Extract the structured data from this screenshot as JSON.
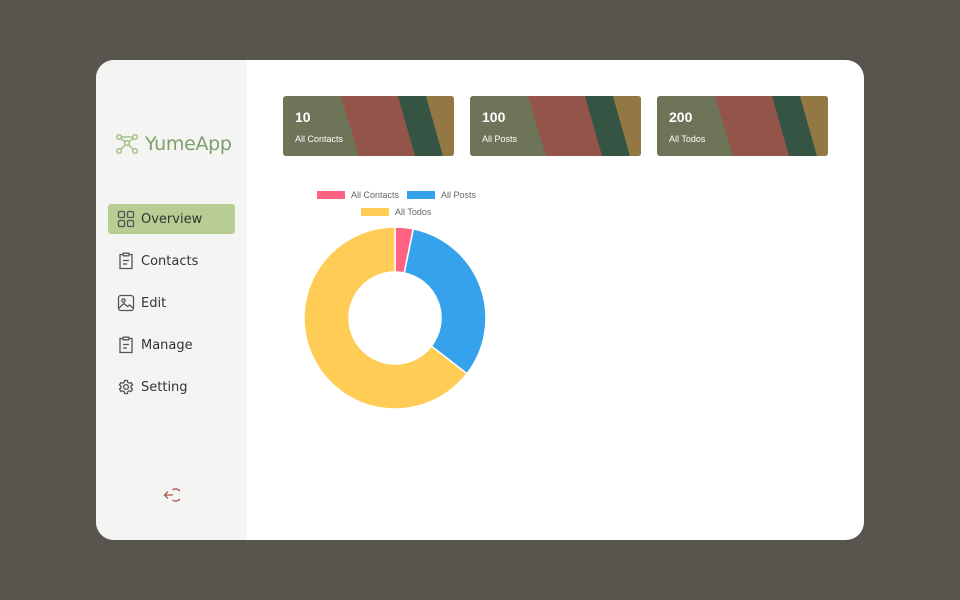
{
  "brand": {
    "name": "YumeApp",
    "icon": "nodes-logo-icon",
    "color": "#7da06a"
  },
  "sidebar": {
    "items": [
      {
        "label": "Overview",
        "icon": "grid-icon",
        "active": true
      },
      {
        "label": "Contacts",
        "icon": "clipboard-icon",
        "active": false
      },
      {
        "label": "Edit",
        "icon": "image-icon",
        "active": false
      },
      {
        "label": "Manage",
        "icon": "clipboard-icon",
        "active": false
      },
      {
        "label": "Setting",
        "icon": "gear-icon",
        "active": false
      }
    ],
    "logout_icon": "logout-icon",
    "active_color": "#b7cd93"
  },
  "cards": [
    {
      "count": "10",
      "label": "All Contacts"
    },
    {
      "count": "100",
      "label": "All Posts"
    },
    {
      "count": "200",
      "label": "All Todos"
    }
  ],
  "card_colors": [
    "#6d7458",
    "#93544a",
    "#355443",
    "#937844"
  ],
  "chart_data": {
    "type": "pie",
    "variant": "doughnut",
    "legend_position": "top",
    "categories": [
      "All Contacts",
      "All Posts",
      "All Todos"
    ],
    "values": [
      10,
      100,
      200
    ],
    "colors": [
      "#ff6384",
      "#36a2eb",
      "#ffcd56"
    ]
  }
}
